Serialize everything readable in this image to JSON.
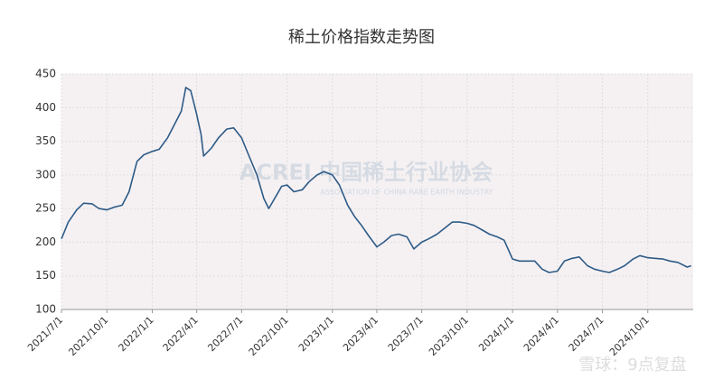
{
  "chart_data": {
    "type": "line",
    "title": "稀土价格指数走势图",
    "x": [
      "2021/7/1",
      "2021/7/15",
      "2021/8/1",
      "2021/8/15",
      "2021/9/1",
      "2021/9/15",
      "2021/10/1",
      "2021/10/15",
      "2021/11/1",
      "2021/11/15",
      "2021/12/1",
      "2021/12/15",
      "2022/1/1",
      "2022/1/15",
      "2022/2/1",
      "2022/2/15",
      "2022/3/1",
      "2022/3/10",
      "2022/3/20",
      "2022/4/1",
      "2022/4/10",
      "2022/4/15",
      "2022/5/1",
      "2022/5/15",
      "2022/6/1",
      "2022/6/15",
      "2022/7/1",
      "2022/7/15",
      "2022/8/1",
      "2022/8/15",
      "2022/8/25",
      "2022/9/10",
      "2022/9/20",
      "2022/10/1",
      "2022/10/15",
      "2022/11/1",
      "2022/11/15",
      "2022/12/1",
      "2022/12/15",
      "2023/1/1",
      "2023/1/15",
      "2023/2/1",
      "2023/2/15",
      "2023/3/1",
      "2023/3/15",
      "2023/4/1",
      "2023/4/15",
      "2023/5/1",
      "2023/5/15",
      "2023/6/1",
      "2023/6/15",
      "2023/7/1",
      "2023/7/15",
      "2023/8/1",
      "2023/8/15",
      "2023/9/1",
      "2023/9/15",
      "2023/10/1",
      "2023/10/15",
      "2023/11/1",
      "2023/11/15",
      "2023/12/1",
      "2023/12/15",
      "2024/1/1",
      "2024/1/15",
      "2024/2/1",
      "2024/2/15",
      "2024/3/1",
      "2024/3/15",
      "2024/4/1",
      "2024/4/15",
      "2024/5/1",
      "2024/5/15",
      "2024/6/1",
      "2024/6/15",
      "2024/7/1",
      "2024/7/15",
      "2024/8/1",
      "2024/8/15",
      "2024/9/1",
      "2024/9/15",
      "2024/10/1",
      "2024/10/15",
      "2024/11/1",
      "2024/11/15",
      "2024/12/1",
      "2024/12/20",
      "2024/12/28"
    ],
    "values": [
      205,
      230,
      248,
      258,
      257,
      250,
      248,
      252,
      255,
      275,
      320,
      330,
      335,
      338,
      355,
      375,
      395,
      430,
      425,
      390,
      360,
      328,
      340,
      355,
      368,
      370,
      355,
      330,
      300,
      265,
      250,
      270,
      283,
      285,
      275,
      278,
      290,
      300,
      305,
      300,
      285,
      255,
      238,
      225,
      210,
      193,
      200,
      210,
      212,
      208,
      190,
      200,
      205,
      212,
      220,
      230,
      230,
      228,
      225,
      218,
      212,
      208,
      203,
      175,
      172,
      172,
      172,
      160,
      155,
      157,
      172,
      176,
      178,
      165,
      160,
      157,
      155,
      160,
      165,
      175,
      180,
      177,
      176,
      175,
      172,
      170,
      163,
      165
    ],
    "color": "#2e5b86",
    "xlim": [
      "2021/7/1",
      "2025/1/1"
    ],
    "xticks": [
      "2021/7/1",
      "2021/10/1",
      "2022/1/1",
      "2022/4/1",
      "2022/7/1",
      "2022/10/1",
      "2023/1/1",
      "2023/4/1",
      "2023/7/1",
      "2023/10/1",
      "2024/1/1",
      "2024/4/1",
      "2024/7/1",
      "2024/10/1"
    ],
    "ylim": [
      100,
      450
    ],
    "yticks": [
      100,
      150,
      200,
      250,
      300,
      350,
      400,
      450
    ],
    "grid": true,
    "watermarks": [
      "ACREI 中国稀土行业协会",
      "ASSOCIATION OF CHINA RARE EARTH INDUSTRY",
      "雪球：9点复盘"
    ]
  }
}
